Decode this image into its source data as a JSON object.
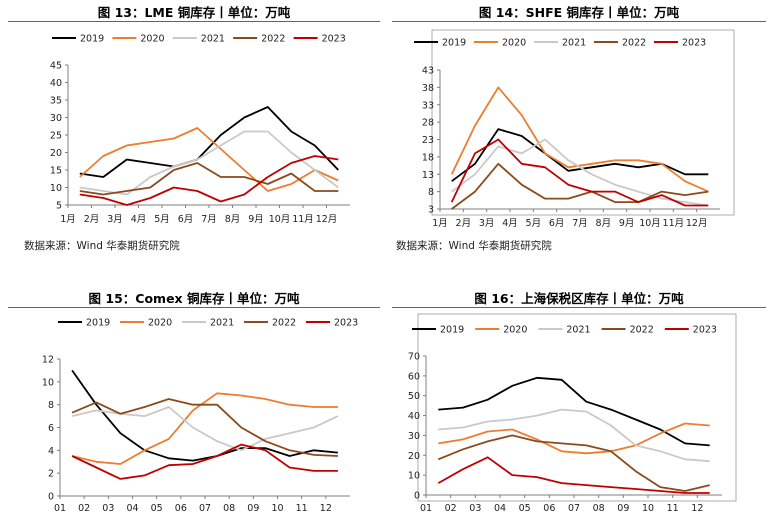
{
  "panels": [
    {
      "title": "图 13：LME 铜库存丨单位：万吨",
      "source": "数据来源：Wind 华泰期货研究院",
      "chart_data": {
        "type": "line",
        "x_tick_labels": [
          "1月",
          "2月",
          "3月",
          "4月",
          "5月",
          "6月",
          "7月",
          "8月",
          "9月",
          "10月",
          "11月",
          "12月"
        ],
        "ylim": [
          5,
          45
        ],
        "yticks": [
          "5",
          "10",
          "15",
          "20",
          "25",
          "30",
          "35",
          "40",
          "45"
        ],
        "grid": false,
        "legend_position": "top",
        "series": [
          {
            "name": "2019",
            "color": "#000000",
            "values": [
              14,
              13,
              18,
              17,
              16,
              18,
              25,
              30,
              33,
              26,
              22,
              15
            ]
          },
          {
            "name": "2020",
            "color": "#ec7d31",
            "values": [
              13,
              19,
              22,
              23,
              24,
              27,
              21,
              15,
              9,
              11,
              15,
              12
            ]
          },
          {
            "name": "2021",
            "color": "#c9c9c9",
            "values": [
              10,
              9,
              8,
              13,
              16,
              18,
              22,
              26,
              26,
              20,
              15,
              10
            ]
          },
          {
            "name": "2022",
            "color": "#8b4a1b",
            "values": [
              9,
              8,
              9,
              10,
              15,
              17,
              13,
              13,
              11,
              14,
              9,
              9
            ]
          },
          {
            "name": "2023",
            "color": "#c00000",
            "values": [
              8,
              7,
              5,
              7,
              10,
              9,
              6,
              8,
              13,
              17,
              19,
              18
            ]
          }
        ]
      }
    },
    {
      "title": "图 14：SHFE 铜库存丨单位：万吨",
      "source": "数据来源：Wind 华泰期货研究院",
      "chart_data": {
        "type": "line",
        "x_tick_labels": [
          "1月",
          "2月",
          "3月",
          "4月",
          "5月",
          "6月",
          "7月",
          "8月",
          "9月",
          "10月",
          "11月",
          "12月"
        ],
        "ylim": [
          3,
          43
        ],
        "yticks": [
          "3",
          "8",
          "13",
          "18",
          "23",
          "28",
          "33",
          "38",
          "43"
        ],
        "grid": false,
        "legend_position": "top",
        "series": [
          {
            "name": "2019",
            "color": "#000000",
            "values": [
              11,
              16,
              26,
              24,
              19,
              14,
              15,
              16,
              15,
              16,
              13,
              13
            ]
          },
          {
            "name": "2020",
            "color": "#ec7d31",
            "values": [
              13,
              27,
              38,
              30,
              19,
              15,
              16,
              17,
              17,
              16,
              11,
              8
            ]
          },
          {
            "name": "2021",
            "color": "#c9c9c9",
            "values": [
              8,
              13,
              21,
              19,
              23,
              17,
              13,
              10,
              8,
              6,
              5,
              4
            ]
          },
          {
            "name": "2022",
            "color": "#8b4a1b",
            "values": [
              3,
              8,
              16,
              10,
              6,
              6,
              8,
              5,
              5,
              8,
              7,
              8
            ]
          },
          {
            "name": "2023",
            "color": "#c00000",
            "values": [
              5,
              19,
              23,
              16,
              15,
              10,
              8,
              8,
              5,
              7,
              4,
              4
            ]
          }
        ]
      }
    },
    {
      "title": "图 15：Comex 铜库存丨单位：万吨",
      "chart_data": {
        "type": "line",
        "x_tick_labels": [
          "01",
          "02",
          "03",
          "04",
          "05",
          "06",
          "07",
          "08",
          "09",
          "10",
          "11",
          "12"
        ],
        "ylim": [
          0,
          12
        ],
        "yticks": [
          "0",
          "2",
          "4",
          "6",
          "8",
          "10",
          "12"
        ],
        "grid": false,
        "legend_position": "top",
        "series": [
          {
            "name": "2019",
            "color": "#000000",
            "values": [
              11,
              8,
              5.5,
              4,
              3.3,
              3.1,
              3.5,
              4.2,
              4.2,
              3.5,
              4,
              3.8
            ]
          },
          {
            "name": "2020",
            "color": "#ec7d31",
            "values": [
              3.5,
              3,
              2.8,
              4,
              5,
              7.5,
              9,
              8.8,
              8.5,
              8,
              7.8,
              7.8
            ]
          },
          {
            "name": "2021",
            "color": "#c9c9c9",
            "values": [
              7,
              7.5,
              7.2,
              7,
              7.8,
              6,
              4.8,
              4,
              5,
              5.5,
              6,
              7
            ]
          },
          {
            "name": "2022",
            "color": "#8b4a1b",
            "values": [
              7.3,
              8.2,
              7.2,
              7.8,
              8.5,
              8,
              8,
              6,
              4.8,
              4,
              3.6,
              3.5
            ]
          },
          {
            "name": "2023",
            "color": "#c00000",
            "values": [
              3.5,
              2.5,
              1.5,
              1.8,
              2.7,
              2.8,
              3.5,
              4.5,
              4,
              2.5,
              2.2,
              2.2
            ]
          }
        ]
      }
    },
    {
      "title": "图 16：上海保税区库存丨单位：万吨",
      "chart_data": {
        "type": "line",
        "x_tick_labels": [
          "01",
          "02",
          "03",
          "04",
          "05",
          "06",
          "07",
          "08",
          "09",
          "10",
          "11",
          "12"
        ],
        "ylim": [
          0,
          70
        ],
        "yticks": [
          "0",
          "10",
          "20",
          "30",
          "40",
          "50",
          "60",
          "70"
        ],
        "grid": false,
        "legend_position": "top",
        "series": [
          {
            "name": "2019",
            "color": "#000000",
            "values": [
              43,
              44,
              48,
              55,
              59,
              58,
              47,
              43,
              38,
              33,
              26,
              25
            ]
          },
          {
            "name": "2020",
            "color": "#ec7d31",
            "values": [
              26,
              28,
              32,
              33,
              28,
              22,
              21,
              22,
              25,
              31,
              36,
              35
            ]
          },
          {
            "name": "2021",
            "color": "#c9c9c9",
            "values": [
              33,
              34,
              37,
              38,
              40,
              43,
              42,
              35,
              25,
              22,
              18,
              17
            ]
          },
          {
            "name": "2022",
            "color": "#8b4a1b",
            "values": [
              18,
              23,
              27,
              30,
              27,
              26,
              25,
              22,
              12,
              4,
              2,
              5
            ]
          },
          {
            "name": "2023",
            "color": "#c00000",
            "values": [
              6,
              13,
              19,
              10,
              9,
              6,
              5,
              4,
              3,
              2,
              1,
              1
            ]
          }
        ]
      }
    }
  ]
}
